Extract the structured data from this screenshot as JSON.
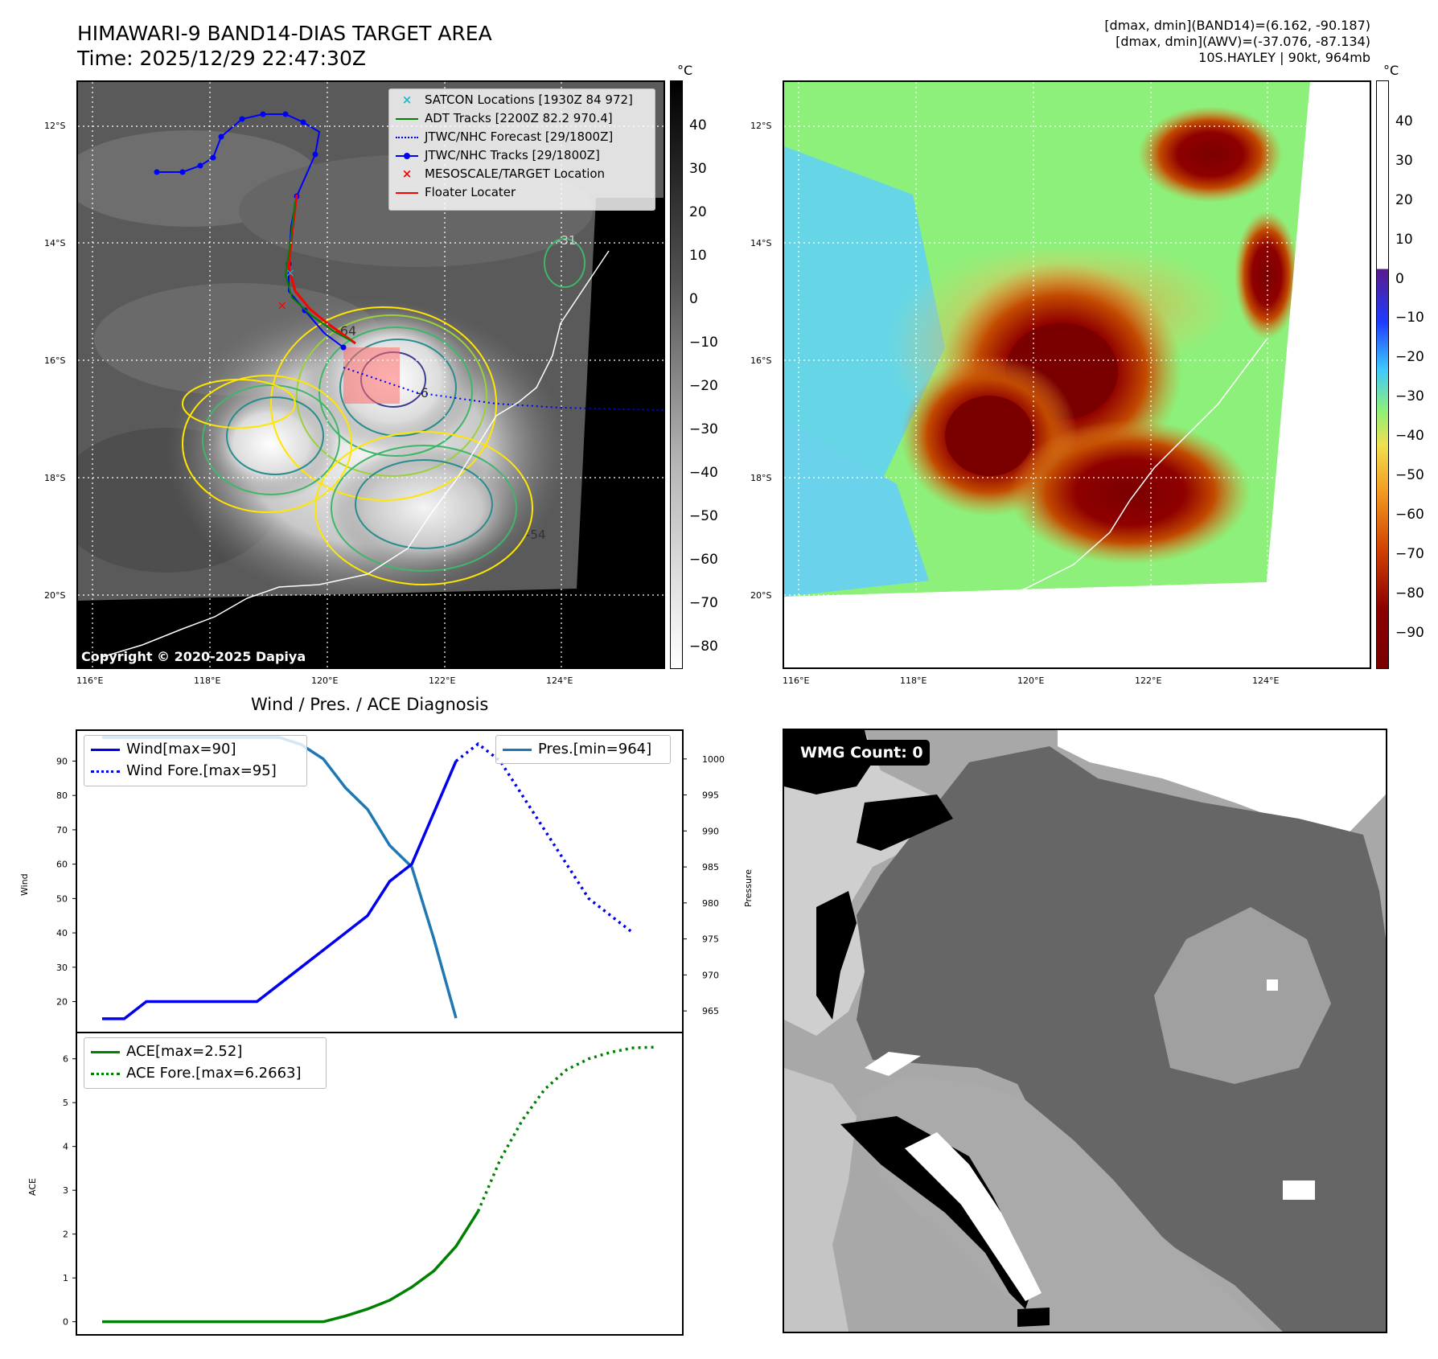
{
  "header": {
    "title": "HIMAWARI-9 BAND14-DIAS TARGET AREA",
    "time": "Time: 2025/12/29 22:47:30Z",
    "info_line1": "[dmax, dmin](BAND14)=(6.162, -90.187)",
    "info_line2": "[dmax, dmin](AWV)=(-37.076, -87.134)",
    "info_line3": "10S.HAYLEY | 90kt, 964mb"
  },
  "maps": {
    "lat_labels": [
      "12°S",
      "14°S",
      "16°S",
      "18°S",
      "20°S"
    ],
    "lon_labels": [
      "116°E",
      "118°E",
      "120°E",
      "122°E",
      "124°E"
    ],
    "copyright": "Copyright © 2020-2025 Dapiya",
    "contour_labels": [
      "-31",
      "-64",
      "-6",
      "-54"
    ],
    "colorbar1": {
      "unit": "°C",
      "ticks": [
        "40",
        "30",
        "20",
        "10",
        "0",
        "−10",
        "−20",
        "−30",
        "−40",
        "−50",
        "−60",
        "−70",
        "−80"
      ]
    },
    "colorbar2": {
      "unit": "°C",
      "ticks": [
        "40",
        "30",
        "20",
        "10",
        "0",
        "−10",
        "−20",
        "−30",
        "−40",
        "−50",
        "−60",
        "−70",
        "−80",
        "−90"
      ]
    },
    "legend": [
      {
        "label": "SATCON Locations [1930Z 84 972]",
        "color": "#17becf",
        "marker": "x"
      },
      {
        "label": "ADT Tracks [2200Z 82.2 970.4]",
        "color": "#008000",
        "marker": "line"
      },
      {
        "label": "JTWC/NHC Forecast [29/1800Z]",
        "color": "#0000ff",
        "marker": "dotted"
      },
      {
        "label": "JTWC/NHC Tracks [29/1800Z]",
        "color": "#0000ff",
        "marker": "line-dot"
      },
      {
        "label": "MESOSCALE/TARGET Location",
        "color": "#ff0000",
        "marker": "x"
      },
      {
        "label": "Floater Locater",
        "color": "#ff0000",
        "marker": "line"
      }
    ]
  },
  "diagnosis": {
    "title": "Wind / Pres. / ACE Diagnosis",
    "wind_axis_label": "Wind",
    "pressure_axis_label": "Pressure",
    "ace_axis_label": "ACE",
    "wind_legend": [
      "Wind[max=90]",
      "Wind Fore.[max=95]"
    ],
    "pres_legend": [
      "Pres.[min=964]"
    ],
    "ace_legend": [
      "ACE[max=2.52]",
      "ACE Fore.[max=6.2663]"
    ],
    "wind_ticks": [
      "90",
      "80",
      "70",
      "60",
      "50",
      "40",
      "30",
      "20"
    ],
    "pres_ticks": [
      "1000",
      "995",
      "990",
      "985",
      "980",
      "975",
      "970",
      "965"
    ],
    "ace_ticks": [
      "6",
      "5",
      "4",
      "3",
      "2",
      "1",
      "0"
    ]
  },
  "wmg": {
    "badge": "WMG Count: 0"
  },
  "colors": {
    "wind": "#0000ee",
    "pressure": "#1f77b4",
    "ace": "#008000"
  },
  "chart_data": [
    {
      "type": "line",
      "title": "Wind / Pres. / ACE Diagnosis",
      "ylabel": "Wind",
      "y2label": "Pressure",
      "ylim": [
        11,
        99
      ],
      "y2lim": [
        962,
        1004
      ],
      "series": [
        {
          "name": "Wind[max=90]",
          "axis": "left",
          "style": "solid",
          "values": [
            15,
            15,
            20,
            20,
            20,
            20,
            20,
            20,
            25,
            30,
            35,
            40,
            45,
            55,
            60,
            75,
            90
          ]
        },
        {
          "name": "Wind Fore.[max=95]",
          "axis": "left",
          "style": "dotted",
          "values": [
            90,
            95,
            90,
            80,
            70,
            60,
            50,
            45,
            40
          ]
        },
        {
          "name": "Pres.[min=964]",
          "axis": "right",
          "style": "solid",
          "values": [
            1003,
            1003,
            1003,
            1003,
            1003,
            1003,
            1003,
            1003,
            1003,
            1002,
            1000,
            996,
            993,
            988,
            985,
            975,
            964
          ]
        }
      ]
    },
    {
      "type": "line",
      "ylabel": "ACE",
      "ylim": [
        -0.3,
        6.6
      ],
      "series": [
        {
          "name": "ACE[max=2.52]",
          "style": "solid",
          "values": [
            0,
            0,
            0,
            0,
            0,
            0,
            0,
            0,
            0,
            0,
            0,
            0.13,
            0.29,
            0.49,
            0.79,
            1.16,
            1.72,
            2.52
          ]
        },
        {
          "name": "ACE Fore.[max=6.2663]",
          "style": "dotted",
          "values": [
            2.52,
            3.7,
            4.6,
            5.3,
            5.75,
            6.0,
            6.15,
            6.25,
            6.2663
          ]
        }
      ]
    }
  ]
}
